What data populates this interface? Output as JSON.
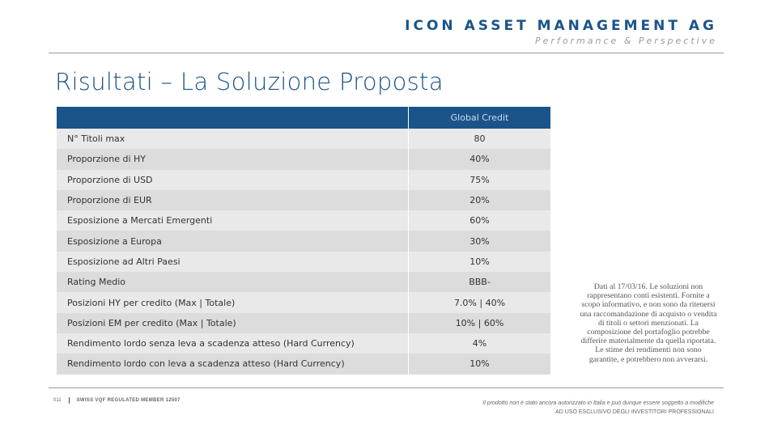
{
  "header": {
    "company": "ICON ASSET MANAGEMENT AG",
    "tagline": "Performance & Perspective"
  },
  "title": "Risultati – La Soluzione Proposta",
  "table": {
    "columns": [
      "",
      "Global Credit"
    ],
    "rows": [
      {
        "label": "N° Titoli max",
        "value": "80"
      },
      {
        "label": "Proporzione di HY",
        "value": "40%"
      },
      {
        "label": "Proporzione di USD",
        "value": "75%"
      },
      {
        "label": "Proporzione di EUR",
        "value": "20%"
      },
      {
        "label": "Esposizione a Mercati Emergenti",
        "value": "60%"
      },
      {
        "label": "Esposizione a Europa",
        "value": "30%"
      },
      {
        "label": "Esposizione ad Altri Paesi",
        "value": "10%"
      },
      {
        "label": "Rating Medio",
        "value": "BBB-"
      },
      {
        "label": "Posizioni HY per credito (Max | Totale)",
        "value": "7.0% | 40%"
      },
      {
        "label": "Posizioni EM per credito (Max | Totale)",
        "value": "10% | 60%"
      },
      {
        "label": "Rendimento lordo senza leva a scadenza atteso (Hard Currency)",
        "value": "4%"
      },
      {
        "label": "Rendimento lordo con leva a scadenza atteso (Hard Currency)",
        "value": "10%"
      }
    ]
  },
  "disclaimer": "Dati al 17/03/16.  Le soluzioni non rappresentano conti esistenti. Fornite a scopo informativo, e non sono da ritenersi una raccomandazione di acquisto o vendita di titoli o settori menzionati. La composizione del portafoglio potrebbe differire materialmente da quella riportata. Le stime dei rendimenti non sono garantite, e potrebbero non avverarsi.",
  "footer": {
    "page": "011",
    "regulation": "SWISS VQF REGULATED MEMBER 12507",
    "notice": "Il prodotto non è stato ancora autorizzato in Italia e può dunque essere soggetto a modifiche",
    "audience": "AD USO ESCLUSIVO DEGLI INVESTITORI PROFESSIONALI"
  },
  "colors": {
    "brand": "#1a5489",
    "row_light": "#e9e9e9",
    "row_dark": "#dcdcdc"
  }
}
